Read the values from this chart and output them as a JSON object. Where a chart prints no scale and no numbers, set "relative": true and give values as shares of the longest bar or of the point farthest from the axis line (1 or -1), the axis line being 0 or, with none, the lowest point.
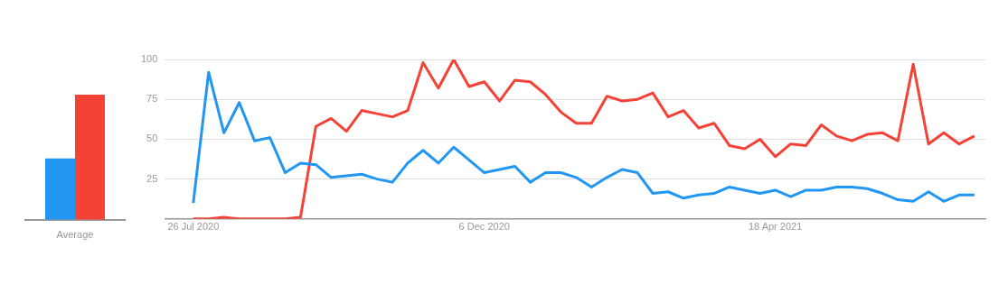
{
  "chart_data": [
    {
      "type": "bar",
      "relative": true,
      "categories": [
        "Average"
      ],
      "series": [
        {
          "color": "#2196f3",
          "values": [
            0.49
          ]
        },
        {
          "color": "#f44336",
          "values": [
            1
          ]
        }
      ]
    },
    {
      "type": "line",
      "x": [
        "2020-07-26",
        "2020-08-02",
        "2020-08-09",
        "2020-08-16",
        "2020-08-23",
        "2020-08-30",
        "2020-09-06",
        "2020-09-13",
        "2020-09-20",
        "2020-09-27",
        "2020-10-04",
        "2020-10-11",
        "2020-10-18",
        "2020-10-25",
        "2020-11-01",
        "2020-11-08",
        "2020-11-15",
        "2020-11-22",
        "2020-11-29",
        "2020-12-06",
        "2020-12-13",
        "2020-12-20",
        "2020-12-27",
        "2021-01-03",
        "2021-01-10",
        "2021-01-17",
        "2021-01-24",
        "2021-01-31",
        "2021-02-07",
        "2021-02-14",
        "2021-02-21",
        "2021-02-28",
        "2021-03-07",
        "2021-03-14",
        "2021-03-21",
        "2021-03-28",
        "2021-04-04",
        "2021-04-11",
        "2021-04-18",
        "2021-04-25",
        "2021-05-02",
        "2021-05-09",
        "2021-05-16",
        "2021-05-23",
        "2021-05-30",
        "2021-06-06",
        "2021-06-13",
        "2021-06-20",
        "2021-06-27",
        "2021-07-04",
        "2021-07-11",
        "2021-07-18"
      ],
      "series": [
        {
          "color": "#2196f3",
          "values": [
            10,
            92,
            54,
            73,
            49,
            51,
            29,
            35,
            34,
            26,
            27,
            28,
            25,
            23,
            35,
            43,
            35,
            45,
            37,
            29,
            31,
            33,
            23,
            29,
            29,
            26,
            20,
            26,
            31,
            29,
            16,
            17,
            13,
            15,
            16,
            20,
            18,
            16,
            18,
            14,
            18,
            18,
            20,
            20,
            19,
            16,
            12,
            11,
            17,
            11,
            15,
            15
          ]
        },
        {
          "color": "#f44336",
          "values": [
            0,
            0,
            1,
            0,
            0,
            0,
            0,
            1,
            58,
            63,
            55,
            68,
            66,
            64,
            68,
            98,
            82,
            100,
            83,
            86,
            74,
            87,
            86,
            78,
            67,
            60,
            60,
            77,
            74,
            75,
            79,
            64,
            68,
            57,
            60,
            46,
            44,
            50,
            39,
            47,
            46,
            59,
            52,
            49,
            53,
            54,
            49,
            97,
            47,
            54,
            47,
            52
          ]
        }
      ],
      "xlim": [
        "2020-07-13",
        "2021-07-23"
      ],
      "xticks": [
        {
          "value": "2020-07-26",
          "label": "26 Jul 2020"
        },
        {
          "value": "2020-12-06",
          "label": "6 Dec 2020"
        },
        {
          "value": "2021-04-18",
          "label": "18 Apr 2021"
        }
      ],
      "ylim": [
        0,
        100
      ],
      "yticks": [
        25,
        50,
        75,
        100
      ],
      "grid": "y",
      "marker": "none"
    }
  ]
}
